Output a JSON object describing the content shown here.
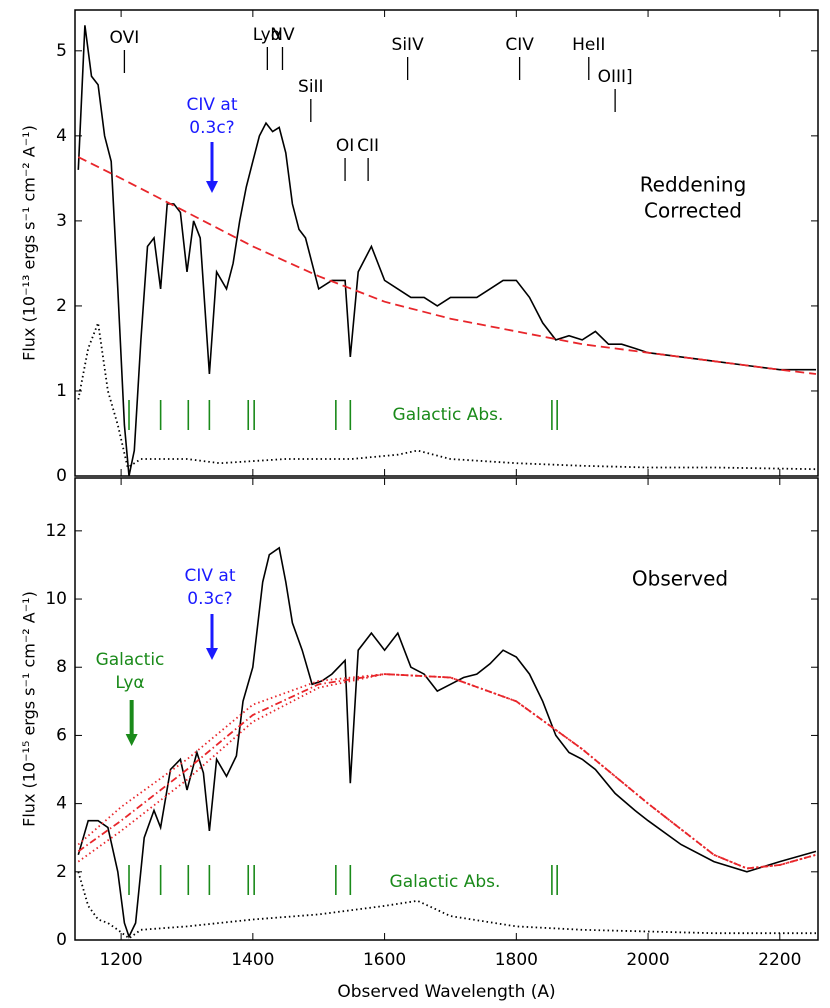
{
  "chart_data": [
    {
      "type": "line",
      "ylabel": "Flux (10⁻¹³ ergs s⁻¹ cm⁻² A⁻¹)",
      "xlim": [
        1130,
        2258
      ],
      "ylim": [
        0,
        5.48
      ],
      "xticks": [
        1200,
        1400,
        1600,
        1800,
        2000,
        2200
      ],
      "yticks": [
        0,
        1,
        2,
        3,
        4,
        5
      ],
      "series": [
        {
          "color": "#000000",
          "style": "solid",
          "x": [
            1135,
            1145,
            1155,
            1165,
            1175,
            1185,
            1195,
            1205,
            1212,
            1220,
            1230,
            1240,
            1250,
            1260,
            1270,
            1280,
            1290,
            1300,
            1310,
            1320,
            1334,
            1345,
            1360,
            1370,
            1380,
            1390,
            1400,
            1410,
            1420,
            1430,
            1440,
            1450,
            1460,
            1470,
            1480,
            1490,
            1500,
            1520,
            1540,
            1548,
            1560,
            1580,
            1600,
            1620,
            1640,
            1660,
            1680,
            1700,
            1720,
            1740,
            1760,
            1780,
            1800,
            1820,
            1840,
            1860,
            1880,
            1900,
            1920,
            1940,
            1960,
            1980,
            2000,
            2050,
            2100,
            2150,
            2200,
            2255
          ],
          "values": [
            3.6,
            5.3,
            4.7,
            4.6,
            4.0,
            3.7,
            2.2,
            0.6,
            0.0,
            0.3,
            1.6,
            2.7,
            2.8,
            2.2,
            3.2,
            3.2,
            3.1,
            2.4,
            3.0,
            2.8,
            1.2,
            2.4,
            2.2,
            2.5,
            3.0,
            3.4,
            3.7,
            4.0,
            4.15,
            4.05,
            4.1,
            3.8,
            3.2,
            2.9,
            2.8,
            2.5,
            2.2,
            2.3,
            2.3,
            1.4,
            2.4,
            2.7,
            2.3,
            2.2,
            2.1,
            2.1,
            2.0,
            2.1,
            2.1,
            2.1,
            2.2,
            2.3,
            2.3,
            2.1,
            1.8,
            1.6,
            1.65,
            1.6,
            1.7,
            1.55,
            1.55,
            1.5,
            1.45,
            1.4,
            1.35,
            1.3,
            1.25,
            1.25
          ]
        },
        {
          "color": "#e8262b",
          "style": "dashed",
          "x": [
            1135,
            1200,
            1300,
            1400,
            1500,
            1600,
            1700,
            1800,
            1900,
            2000,
            2100,
            2200,
            2255
          ],
          "values": [
            3.75,
            3.5,
            3.1,
            2.7,
            2.35,
            2.05,
            1.85,
            1.7,
            1.55,
            1.45,
            1.35,
            1.25,
            1.2
          ]
        },
        {
          "color": "#000000",
          "style": "dotted",
          "x": [
            1135,
            1150,
            1165,
            1180,
            1195,
            1210,
            1230,
            1300,
            1350,
            1450,
            1550,
            1620,
            1650,
            1700,
            1800,
            1900,
            2000,
            2100,
            2255
          ],
          "values": [
            0.9,
            1.5,
            1.8,
            1.0,
            0.6,
            0.1,
            0.2,
            0.2,
            0.15,
            0.2,
            0.2,
            0.25,
            0.3,
            0.2,
            0.15,
            0.12,
            0.1,
            0.1,
            0.08
          ]
        }
      ],
      "features": [
        {
          "label": "OVI",
          "x": 1205
        },
        {
          "label": "Lyα",
          "x": 1422
        },
        {
          "label": "NV",
          "x": 1445
        },
        {
          "label": "SiII",
          "x": 1488
        },
        {
          "label": "OI",
          "x": 1540
        },
        {
          "label": "CII",
          "x": 1575
        },
        {
          "label": "SiIV",
          "x": 1635
        },
        {
          "label": "CIV",
          "x": 1805
        },
        {
          "label": "HeII",
          "x": 1910
        },
        {
          "label": "OIII]",
          "x": 1950
        }
      ],
      "galactic_abs": {
        "label": "Galactic Abs.",
        "x": [
          1212,
          1260,
          1302,
          1334,
          1393,
          1402,
          1526,
          1548,
          1854,
          1862
        ]
      },
      "annotations": [
        {
          "text": [
            "CIV at",
            "0.3c?"
          ],
          "x": 1338,
          "color": "#1a1aff"
        },
        {
          "text": [
            "Reddening",
            "Corrected"
          ],
          "color": "#000000"
        }
      ]
    },
    {
      "type": "line",
      "xlabel": "Observed Wavelength (A)",
      "ylabel": "Flux (10⁻¹⁵ ergs s⁻¹ cm⁻² A⁻¹)",
      "xlim": [
        1130,
        2258
      ],
      "ylim": [
        0,
        13.55
      ],
      "xticks": [
        1200,
        1400,
        1600,
        1800,
        2000,
        2200
      ],
      "yticks": [
        0,
        2,
        4,
        6,
        8,
        10,
        12
      ],
      "series": [
        {
          "color": "#000000",
          "style": "solid",
          "x": [
            1135,
            1150,
            1165,
            1180,
            1195,
            1205,
            1212,
            1222,
            1235,
            1250,
            1260,
            1275,
            1290,
            1300,
            1315,
            1325,
            1334,
            1345,
            1360,
            1375,
            1385,
            1400,
            1415,
            1425,
            1440,
            1450,
            1460,
            1475,
            1490,
            1505,
            1520,
            1540,
            1548,
            1560,
            1580,
            1600,
            1620,
            1640,
            1660,
            1680,
            1700,
            1720,
            1740,
            1760,
            1780,
            1800,
            1820,
            1840,
            1860,
            1880,
            1900,
            1920,
            1950,
            1980,
            2000,
            2050,
            2100,
            2150,
            2200,
            2255
          ],
          "values": [
            2.5,
            3.5,
            3.5,
            3.3,
            2.0,
            0.5,
            0.1,
            0.5,
            3.0,
            3.8,
            3.3,
            5.0,
            5.3,
            4.4,
            5.5,
            4.9,
            3.2,
            5.3,
            4.8,
            5.4,
            7.0,
            8.0,
            10.5,
            11.3,
            11.5,
            10.5,
            9.3,
            8.5,
            7.5,
            7.6,
            7.8,
            8.2,
            4.6,
            8.5,
            9.0,
            8.5,
            9.0,
            8.0,
            7.8,
            7.3,
            7.5,
            7.7,
            7.8,
            8.1,
            8.5,
            8.3,
            7.8,
            7.0,
            6.0,
            5.5,
            5.3,
            5.0,
            4.3,
            3.8,
            3.5,
            2.8,
            2.3,
            2.0,
            2.3,
            2.6
          ]
        },
        {
          "color": "#e8262b",
          "style": "dashdot",
          "x": [
            1135,
            1200,
            1300,
            1400,
            1500,
            1600,
            1700,
            1800,
            1900,
            2000,
            2100,
            2150,
            2200,
            2255
          ],
          "values": [
            2.6,
            3.5,
            5.0,
            6.6,
            7.5,
            7.8,
            7.7,
            7.0,
            5.6,
            4.0,
            2.5,
            2.1,
            2.2,
            2.5
          ]
        },
        {
          "color": "#e8262b",
          "style": "dotted",
          "x": [
            1135,
            1200,
            1300,
            1400,
            1500,
            1600,
            1700,
            1800,
            1900,
            2000,
            2100,
            2150,
            2200,
            2255
          ],
          "values": [
            2.8,
            3.9,
            5.3,
            6.9,
            7.6,
            7.8,
            7.7,
            7.0,
            5.6,
            4.0,
            2.5,
            2.1,
            2.2,
            2.5
          ]
        },
        {
          "color": "#e8262b",
          "style": "dotted",
          "x": [
            1135,
            1200,
            1300,
            1400,
            1500,
            1600,
            1700,
            1800,
            1900,
            2000,
            2100,
            2150,
            2200,
            2255
          ],
          "values": [
            2.3,
            3.2,
            4.7,
            6.4,
            7.4,
            7.8,
            7.7,
            7.0,
            5.6,
            4.0,
            2.5,
            2.1,
            2.2,
            2.5
          ]
        },
        {
          "color": "#000000",
          "style": "dotted",
          "x": [
            1135,
            1150,
            1165,
            1180,
            1195,
            1212,
            1230,
            1300,
            1400,
            1500,
            1600,
            1650,
            1700,
            1800,
            1900,
            2000,
            2100,
            2255
          ],
          "values": [
            2.0,
            1.0,
            0.6,
            0.5,
            0.3,
            0.05,
            0.3,
            0.4,
            0.6,
            0.75,
            1.0,
            1.15,
            0.7,
            0.4,
            0.3,
            0.25,
            0.2,
            0.2
          ]
        }
      ],
      "galactic_abs": {
        "label": "Galactic Abs.",
        "x": [
          1212,
          1260,
          1302,
          1334,
          1393,
          1402,
          1526,
          1548,
          1854,
          1862
        ]
      },
      "annotations": [
        {
          "text": [
            "CIV at",
            "0.3c?"
          ],
          "x": 1338,
          "color": "#1a1aff"
        },
        {
          "text": [
            "Galactic",
            "Lyα"
          ],
          "x": 1216,
          "color": "#1a8a1a"
        },
        {
          "text": [
            "Observed"
          ],
          "color": "#000000"
        }
      ]
    }
  ]
}
